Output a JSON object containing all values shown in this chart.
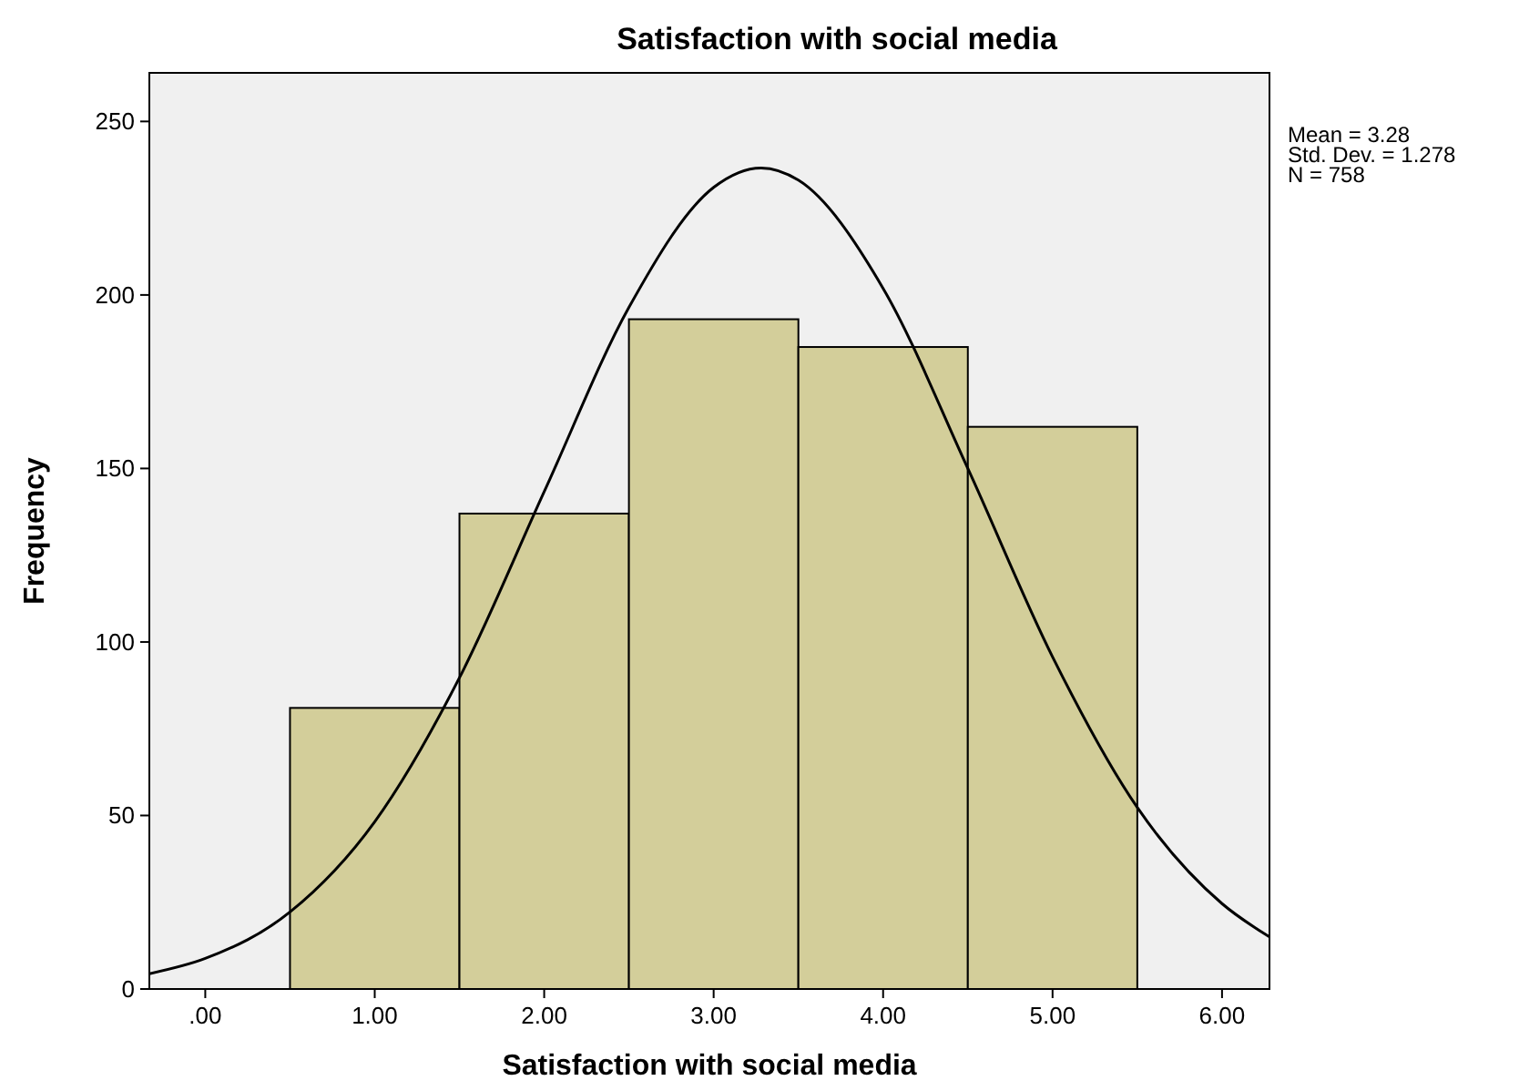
{
  "chart_data": {
    "type": "histogram",
    "title": "Satisfaction with social media",
    "xlabel": "Satisfaction with social media",
    "ylabel": "Frequency",
    "bins": [
      0.5,
      1.5,
      2.5,
      3.5,
      4.5,
      5.5
    ],
    "values": [
      81,
      137,
      193,
      185,
      162
    ],
    "color": "#d3ce9a",
    "series": [
      {
        "type": "line",
        "color": "#000000",
        "x": [
          -0.33,
          0,
          0.5,
          1,
          1.5,
          2,
          2.5,
          3,
          3.28,
          3.5,
          4,
          4.5,
          5,
          5.5,
          6,
          6.28
        ],
        "values": [
          4.4,
          8.8,
          22.2,
          48.2,
          89.7,
          143.3,
          196.4,
          231,
          236.6,
          233.1,
          201.9,
          150,
          95.7,
          52.3,
          24.6,
          15
        ]
      }
    ],
    "xlim": [
      -0.33,
      6.28
    ],
    "xticks": [
      {
        "value": 0,
        "label": ".00"
      },
      {
        "value": 1,
        "label": "1.00"
      },
      {
        "value": 2,
        "label": "2.00"
      },
      {
        "value": 3,
        "label": "3.00"
      },
      {
        "value": 4,
        "label": "4.00"
      },
      {
        "value": 5,
        "label": "5.00"
      },
      {
        "value": 6,
        "label": "6.00"
      }
    ],
    "ylim": [
      0,
      264
    ],
    "yticks": [
      0,
      50,
      100,
      150,
      200,
      250
    ],
    "annotations": [
      "Mean = 3.28",
      "Std. Dev. = 1.278",
      "N = 758"
    ]
  }
}
